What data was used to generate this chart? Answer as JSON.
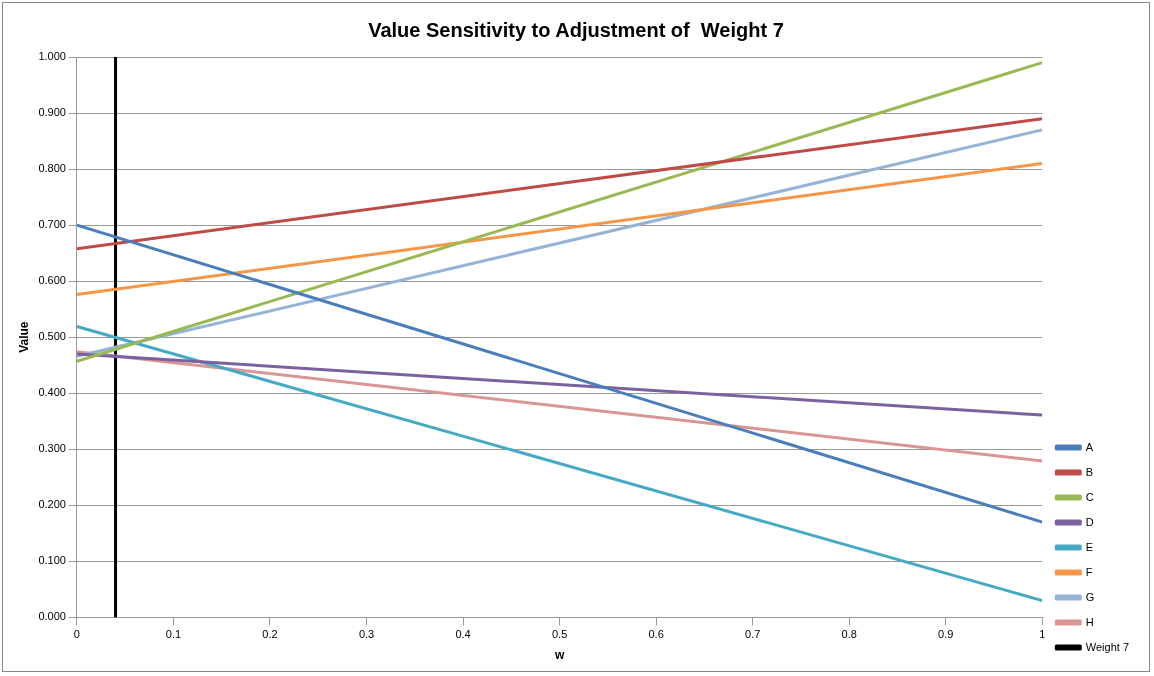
{
  "chart_data": {
    "type": "line",
    "title": "Value Sensitivity to Adjustment of  Weight 7",
    "xlabel": "w",
    "ylabel": "Value",
    "xlim": [
      0,
      1
    ],
    "xticks": [
      0,
      0.1,
      0.2,
      0.3,
      0.4,
      0.5,
      0.6,
      0.7,
      0.8,
      0.9,
      1
    ],
    "ylim": [
      0,
      1
    ],
    "yticks": [
      {
        "value": 0,
        "label": "0.000"
      },
      {
        "value": 0.1,
        "label": "0.100"
      },
      {
        "value": 0.2,
        "label": "0.200"
      },
      {
        "value": 0.3,
        "label": "0.300"
      },
      {
        "value": 0.4,
        "label": "0.400"
      },
      {
        "value": 0.5,
        "label": "0.500"
      },
      {
        "value": 0.6,
        "label": "0.600"
      },
      {
        "value": 0.7,
        "label": "0.700"
      },
      {
        "value": 0.8,
        "label": "0.800"
      },
      {
        "value": 0.9,
        "label": "0.900"
      },
      {
        "value": 1,
        "label": "1.000"
      }
    ],
    "grid": "y",
    "legend": "bottom right",
    "marker": "none",
    "line_style": "solid",
    "series": [
      {
        "name": "A",
        "color": "#4a7ebb",
        "x": [
          0,
          1
        ],
        "values": [
          0.7,
          0.17
        ]
      },
      {
        "name": "B",
        "color": "#be4b48",
        "x": [
          0,
          1
        ],
        "values": [
          0.658,
          0.89
        ]
      },
      {
        "name": "C",
        "color": "#98b954",
        "x": [
          0,
          1
        ],
        "values": [
          0.457,
          0.99
        ]
      },
      {
        "name": "D",
        "color": "#7d60a0",
        "x": [
          0,
          1
        ],
        "values": [
          0.47,
          0.361
        ]
      },
      {
        "name": "E",
        "color": "#46aac5",
        "x": [
          0,
          1
        ],
        "values": [
          0.519,
          0.03
        ]
      },
      {
        "name": "F",
        "color": "#f79646",
        "x": [
          0,
          1
        ],
        "values": [
          0.576,
          0.81
        ]
      },
      {
        "name": "G",
        "color": "#95b3d7",
        "x": [
          0,
          1
        ],
        "values": [
          0.466,
          0.87
        ]
      },
      {
        "name": "H",
        "color": "#d99694",
        "x": [
          0,
          1
        ],
        "values": [
          0.474,
          0.279
        ]
      },
      {
        "name": "Weight 7",
        "color": "#000000",
        "x": [
          0.04,
          0.04
        ],
        "values": [
          0,
          1
        ]
      }
    ]
  }
}
